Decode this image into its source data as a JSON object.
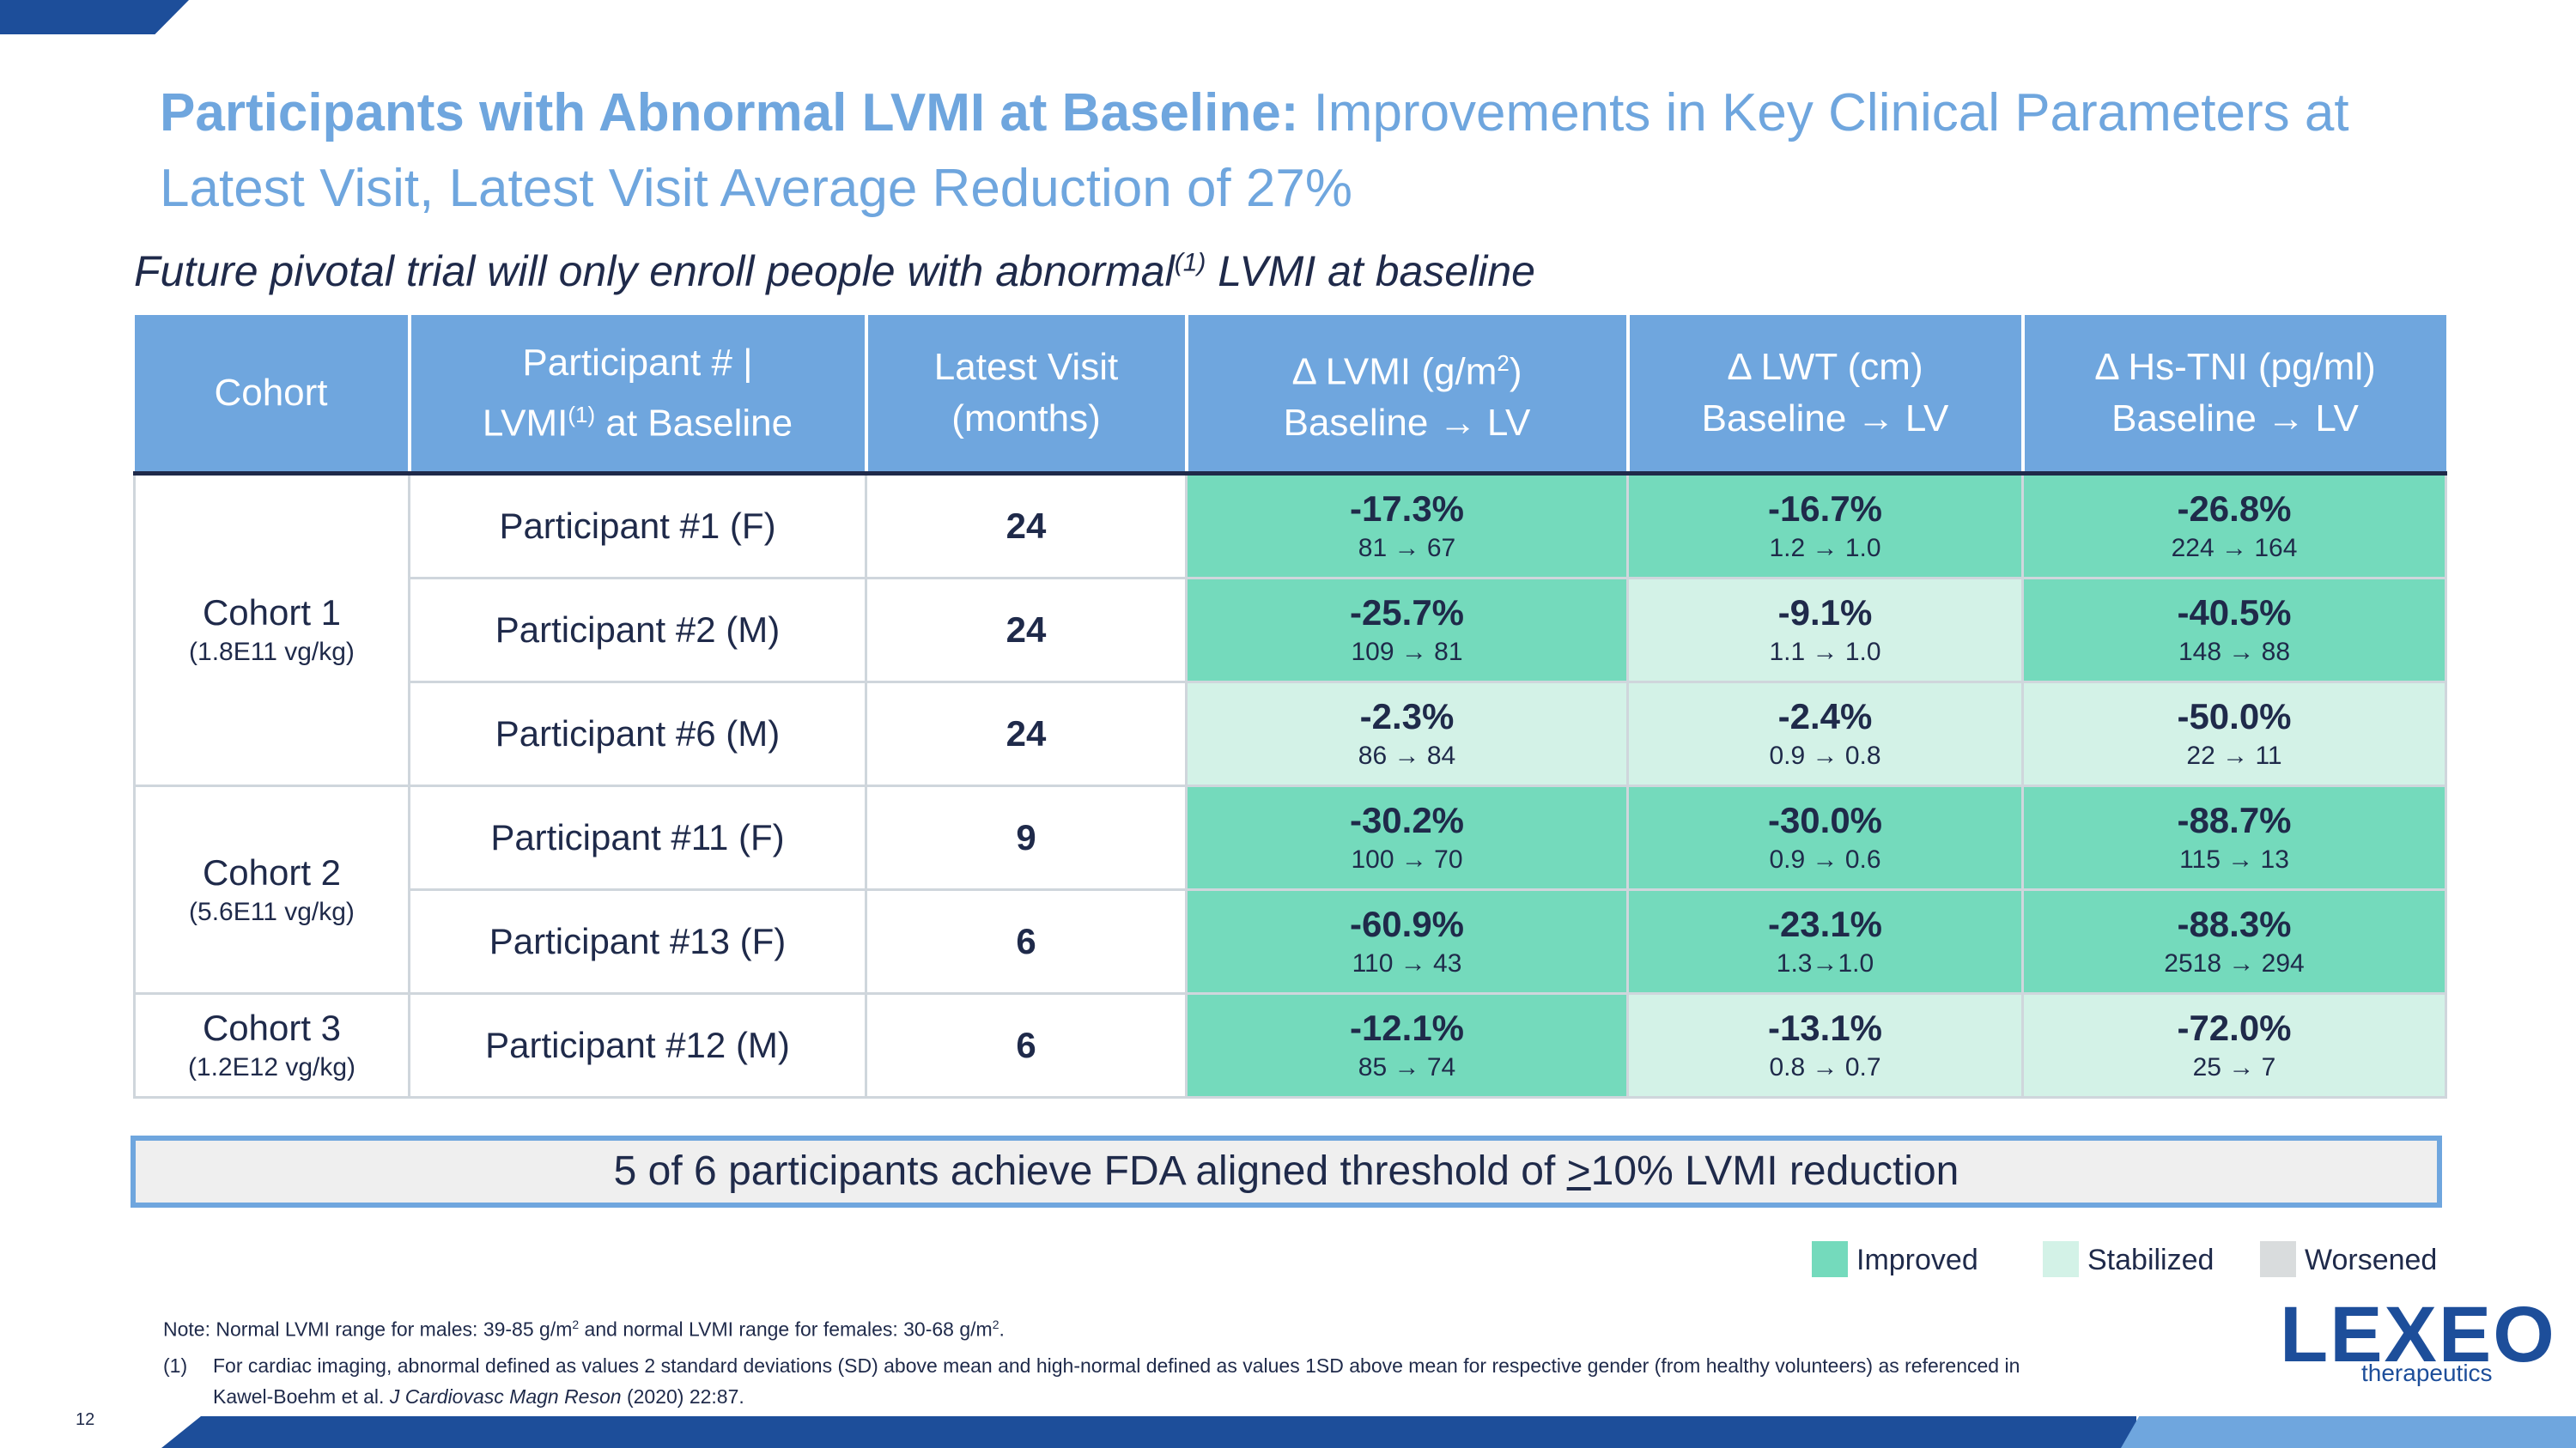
{
  "title": {
    "bold": "Participants with Abnormal LVMI at Baseline:",
    "regular": "Improvements in Key Clinical Parameters at Latest Visit, Latest Visit Average Reduction of 27%"
  },
  "subtitle": {
    "before": "Future pivotal trial will only enroll people with abnormal",
    "sup": "(1)",
    "after": " LVMI at baseline"
  },
  "table": {
    "headers": {
      "cohort": "Cohort",
      "participant_line1": "Participant # |",
      "participant_line2_a": "LVMI",
      "participant_line2_sup": "(1)",
      "participant_line2_b": " at Baseline",
      "visit_line1": "Latest Visit",
      "visit_line2": "(months)",
      "lvmi_line1_a": "Δ LVMI (g/m",
      "lvmi_line1_sup": "2",
      "lvmi_line1_b": ")",
      "lwt_line1": "Δ LWT (cm)",
      "tni_line1": "Δ Hs-TNI (pg/ml)",
      "baseline_to_lv": "Baseline → LV"
    },
    "cohorts": [
      {
        "name": "Cohort 1",
        "dose": "(1.8E11 vg/kg)"
      },
      {
        "name": "Cohort 2",
        "dose": "(5.6E11 vg/kg)"
      },
      {
        "name": "Cohort 3",
        "dose": "(1.2E12 vg/kg)"
      }
    ],
    "rows": [
      {
        "participant": "Participant #1 (F)",
        "visit": "24",
        "lvmi": {
          "pct": "-17.3%",
          "range": "81 → 67",
          "status": "improved"
        },
        "lwt": {
          "pct": "-16.7%",
          "range": "1.2 → 1.0",
          "status": "improved"
        },
        "tni": {
          "pct": "-26.8%",
          "range": "224 → 164",
          "status": "improved"
        }
      },
      {
        "participant": "Participant #2 (M)",
        "visit": "24",
        "lvmi": {
          "pct": "-25.7%",
          "range": "109 → 81",
          "status": "improved"
        },
        "lwt": {
          "pct": "-9.1%",
          "range": "1.1 → 1.0",
          "status": "stabilized"
        },
        "tni": {
          "pct": "-40.5%",
          "range": "148 → 88",
          "status": "improved"
        }
      },
      {
        "participant": "Participant #6 (M)",
        "visit": "24",
        "lvmi": {
          "pct": "-2.3%",
          "range": "86 → 84",
          "status": "stabilized"
        },
        "lwt": {
          "pct": "-2.4%",
          "range": "0.9 → 0.8",
          "status": "stabilized"
        },
        "tni": {
          "pct": "-50.0%",
          "range": "22 → 11",
          "status": "stabilized"
        }
      },
      {
        "participant": "Participant #11 (F)",
        "visit": "9",
        "lvmi": {
          "pct": "-30.2%",
          "range": "100 → 70",
          "status": "improved"
        },
        "lwt": {
          "pct": "-30.0%",
          "range": "0.9 → 0.6",
          "status": "improved"
        },
        "tni": {
          "pct": "-88.7%",
          "range": "115 → 13",
          "status": "improved"
        }
      },
      {
        "participant": "Participant #13 (F)",
        "visit": "6",
        "lvmi": {
          "pct": "-60.9%",
          "range": "110 → 43",
          "status": "improved"
        },
        "lwt": {
          "pct": "-23.1%",
          "range": "1.3→1.0",
          "status": "improved"
        },
        "tni": {
          "pct": "-88.3%",
          "range": "2518 → 294",
          "status": "improved"
        }
      },
      {
        "participant": "Participant #12 (M)",
        "visit": "6",
        "lvmi": {
          "pct": "-12.1%",
          "range": "85 → 74",
          "status": "improved"
        },
        "lwt": {
          "pct": "-13.1%",
          "range": "0.8 → 0.7",
          "status": "stabilized"
        },
        "tni": {
          "pct": "-72.0%",
          "range": "25 → 7",
          "status": "stabilized"
        }
      }
    ]
  },
  "callout": {
    "before": "5 of 6 participants achieve FDA aligned threshold of ",
    "ge": ">",
    "after": "10% LVMI reduction"
  },
  "legend": {
    "improved": {
      "label": "Improved",
      "color": "#74dabc"
    },
    "stabilized": {
      "label": "Stabilized",
      "color": "#d3f2e7"
    },
    "worsened": {
      "label": "Worsened",
      "color": "#d9dcdd"
    }
  },
  "note": {
    "a": "Note: Normal LVMI range for males: 39-85 g/m",
    "sup1": "2",
    "b": " and normal LVMI range for females: 30-68 g/m",
    "sup2": "2",
    "c": "."
  },
  "footnote": {
    "num": "(1)",
    "line1": "For cardiac imaging, abnormal defined as values 2 standard deviations (SD) above mean and high-normal defined as values 1SD above mean for respective gender (from healthy volunteers) as referenced in",
    "line2_a": "Kawel‑Boehm et al. ",
    "line2_i": "J Cardiovasc Magn Reson",
    "line2_b": " (2020) 22:87."
  },
  "logo": {
    "word": "LEXEO",
    "sub": "therapeutics"
  },
  "page_number": "12",
  "colors": {
    "accent": "#6fa6de",
    "navy": "#1d4e9a",
    "text": "#1f2a4a"
  }
}
